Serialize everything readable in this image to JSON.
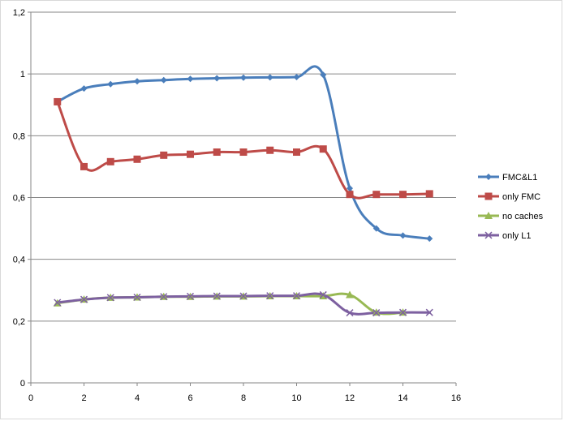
{
  "chart_data": {
    "type": "line",
    "title": "",
    "xlabel": "",
    "ylabel": "",
    "xlim": [
      0,
      16
    ],
    "ylim": [
      0,
      1.2
    ],
    "x_ticks": [
      "0",
      "2",
      "4",
      "6",
      "8",
      "10",
      "12",
      "14",
      "16"
    ],
    "y_ticks": [
      "0",
      "0,2",
      "0,4",
      "0,6",
      "0,8",
      "1",
      "1,2"
    ],
    "grid": "horizontal",
    "legend_position": "right",
    "x": [
      1,
      2,
      3,
      4,
      5,
      6,
      7,
      8,
      9,
      10,
      11,
      12,
      13,
      14,
      15
    ],
    "series": [
      {
        "name": "FMC&L1",
        "color": "#4a7ebb",
        "marker": "diamond",
        "values": [
          0.91,
          0.953,
          0.967,
          0.976,
          0.98,
          0.984,
          0.986,
          0.988,
          0.989,
          0.99,
          0.997,
          0.63,
          0.5,
          0.477,
          0.467
        ]
      },
      {
        "name": "only FMC",
        "color": "#be4b48",
        "marker": "square",
        "values": [
          0.91,
          0.7,
          0.716,
          0.724,
          0.737,
          0.74,
          0.747,
          0.747,
          0.753,
          0.747,
          0.757,
          0.61,
          0.61,
          0.61,
          0.612
        ]
      },
      {
        "name": "no caches",
        "color": "#98b954",
        "marker": "triangle",
        "values": [
          0.258,
          0.27,
          0.276,
          0.277,
          0.279,
          0.279,
          0.28,
          0.28,
          0.281,
          0.281,
          0.281,
          0.285,
          0.228,
          0.228,
          null
        ]
      },
      {
        "name": "only L1",
        "color": "#7d60a0",
        "marker": "x",
        "values": [
          0.26,
          0.27,
          0.276,
          0.277,
          0.279,
          0.28,
          0.281,
          0.281,
          0.282,
          0.282,
          0.285,
          0.227,
          0.227,
          0.228,
          0.228
        ]
      }
    ]
  }
}
